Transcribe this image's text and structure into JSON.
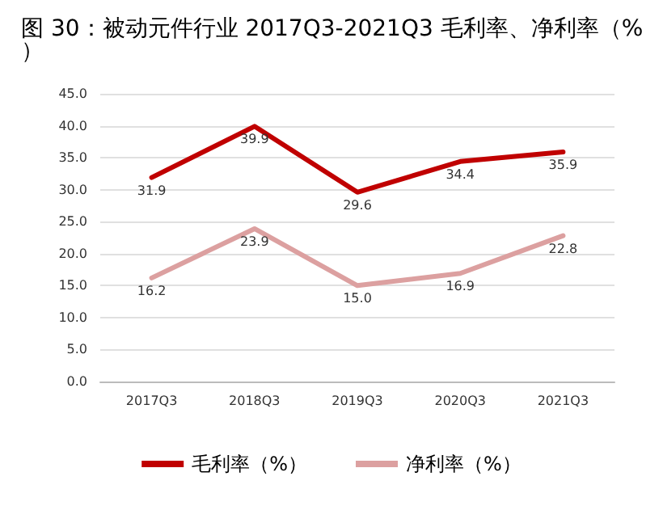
{
  "chart_data": {
    "type": "line",
    "title": "图 30：被动元件行业 2017Q3-2021Q3 毛利率、净利率（%）",
    "categories": [
      "2017Q3",
      "2018Q3",
      "2019Q3",
      "2020Q3",
      "2021Q3"
    ],
    "series": [
      {
        "name": "毛利率（%）",
        "color": "#c00000",
        "values": [
          31.9,
          39.9,
          29.6,
          34.4,
          35.9
        ],
        "value_labels": [
          "31.9",
          "39.9",
          "29.6",
          "34.4",
          "35.9"
        ]
      },
      {
        "name": "净利率（%）",
        "color": "#dca0a0",
        "values": [
          16.2,
          23.9,
          15.0,
          16.9,
          22.8
        ],
        "value_labels": [
          "16.2",
          "23.9",
          "15.0",
          "16.9",
          "22.8"
        ]
      }
    ],
    "ylim": [
      0,
      45
    ],
    "yticks": [
      {
        "value": 0,
        "label": "0.0"
      },
      {
        "value": 5,
        "label": "5.0"
      },
      {
        "value": 10,
        "label": "10.0"
      },
      {
        "value": 15,
        "label": "15.0"
      },
      {
        "value": 20,
        "label": "20.0"
      },
      {
        "value": 25,
        "label": "25.0"
      },
      {
        "value": 30,
        "label": "30.0"
      },
      {
        "value": 35,
        "label": "35.0"
      },
      {
        "value": 40,
        "label": "40.0"
      },
      {
        "value": 45,
        "label": "45.0"
      }
    ],
    "grid": "y",
    "legend": "bottom",
    "marker": "none",
    "line_style": "solid"
  }
}
